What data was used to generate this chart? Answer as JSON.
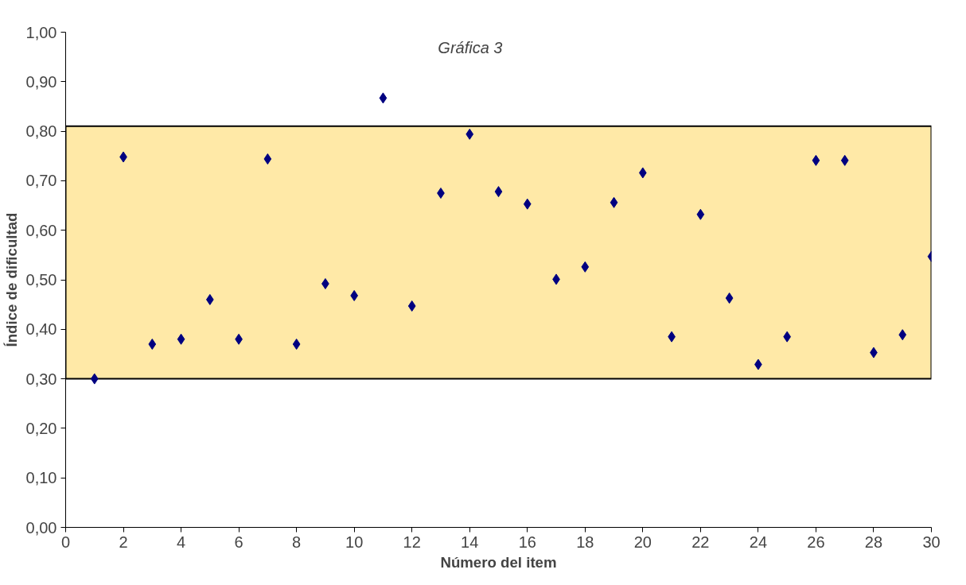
{
  "chart_data": {
    "type": "scatter",
    "title": "Gráfica 3",
    "xlabel": "Número del item",
    "ylabel": "Índice de dificultad",
    "x": [
      1,
      2,
      3,
      4,
      5,
      6,
      7,
      8,
      9,
      10,
      11,
      12,
      13,
      14,
      15,
      16,
      17,
      18,
      19,
      20,
      21,
      22,
      23,
      24,
      25,
      26,
      27,
      28,
      29,
      30
    ],
    "series": [
      {
        "color": "#000080",
        "values": [
          0.3,
          0.748,
          0.37,
          0.38,
          0.46,
          0.38,
          0.744,
          0.37,
          0.492,
          0.468,
          0.867,
          0.447,
          0.675,
          0.794,
          0.678,
          0.653,
          0.501,
          0.526,
          0.656,
          0.716,
          0.385,
          0.632,
          0.463,
          0.329,
          0.385,
          0.741,
          0.741,
          0.353,
          0.389,
          0.547
        ]
      }
    ],
    "xlim": [
      0,
      30
    ],
    "xticks": [
      0,
      2,
      4,
      6,
      8,
      10,
      12,
      14,
      16,
      18,
      20,
      22,
      24,
      26,
      28,
      30
    ],
    "ylim": [
      0,
      1
    ],
    "yticks": [
      {
        "value": 0,
        "label": "0,00"
      },
      {
        "value": 0.1,
        "label": "0,10"
      },
      {
        "value": 0.2,
        "label": "0,20"
      },
      {
        "value": 0.3,
        "label": "0,30"
      },
      {
        "value": 0.4,
        "label": "0,40"
      },
      {
        "value": 0.5,
        "label": "0,50"
      },
      {
        "value": 0.6,
        "label": "0,60"
      },
      {
        "value": 0.7,
        "label": "0,70"
      },
      {
        "value": 0.8,
        "label": "0,80"
      },
      {
        "value": 0.9,
        "label": "0,90"
      },
      {
        "value": 1,
        "label": "1,00"
      }
    ],
    "bands": [
      {
        "axis": "y",
        "from": 0.3,
        "to": 0.81,
        "color": "#ffd75e"
      }
    ],
    "marker": "diamond",
    "grid": false
  }
}
